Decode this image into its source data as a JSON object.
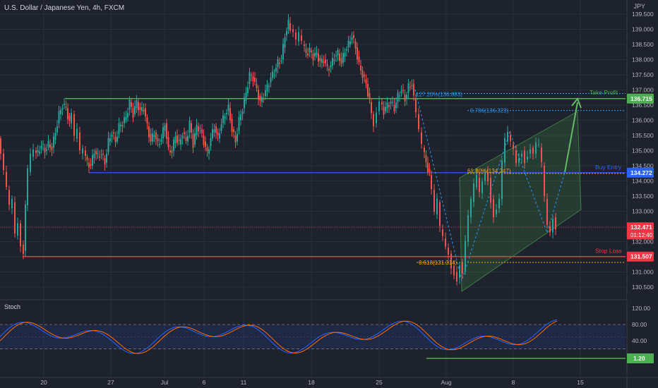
{
  "header": {
    "title": "U.S. Dollar / Japanese Yen, 4h, FXCM",
    "unit": "JPY",
    "stoch_label": "Stoch"
  },
  "colors": {
    "background": "#1e222d",
    "bull": "#26a69a",
    "bear": "#ef5350",
    "green_line": "#4caf50",
    "blue_line": "#2962ff",
    "red_line": "#f23645",
    "fib_blue": "#2196f3",
    "fib_orange": "#f7a600",
    "stoch_k": "#2962ff",
    "stoch_d": "#ff6d00",
    "channel": "#4caf50"
  },
  "chart_data": {
    "type": "candlestick",
    "y_axis": {
      "ticks": [
        130.5,
        131.0,
        131.5,
        132.0,
        132.5,
        133.0,
        133.5,
        134.0,
        134.5,
        135.0,
        135.5,
        136.0,
        136.5,
        137.0,
        137.5,
        138.0,
        138.5,
        139.0,
        139.5
      ],
      "tick_labels": [
        "130.500",
        "131.000",
        "131.500",
        "132.000",
        "132.500",
        "133.000",
        "133.500",
        "134.000",
        "134.500",
        "135.000",
        "135.500",
        "136.000",
        "136.500",
        "137.000",
        "137.500",
        "138.000",
        "138.500",
        "139.000",
        "139.500"
      ]
    },
    "x_axis": {
      "labels": [
        "20",
        "27",
        "Jul",
        "6",
        "11",
        "18",
        "25",
        "Aug",
        "8",
        "15"
      ]
    },
    "price_path": [
      [
        0,
        135.4
      ],
      [
        4,
        134.9
      ],
      [
        8,
        134.3
      ],
      [
        12,
        133.7
      ],
      [
        16,
        133.1
      ],
      [
        20,
        133.3
      ],
      [
        24,
        132.2
      ],
      [
        28,
        132.6
      ],
      [
        32,
        131.9
      ],
      [
        35,
        131.7
      ],
      [
        38,
        133.2
      ],
      [
        42,
        134.3
      ],
      [
        46,
        134.8
      ],
      [
        50,
        135.0
      ],
      [
        55,
        134.9
      ],
      [
        60,
        135.2
      ],
      [
        65,
        135.0
      ],
      [
        70,
        135.2
      ],
      [
        75,
        135.1
      ],
      [
        80,
        135.6
      ],
      [
        85,
        136.2
      ],
      [
        90,
        136.5
      ],
      [
        95,
        136.4
      ],
      [
        100,
        135.9
      ],
      [
        104,
        136.2
      ],
      [
        108,
        135.4
      ],
      [
        112,
        135.6
      ],
      [
        116,
        134.9
      ],
      [
        120,
        135.0
      ],
      [
        125,
        134.6
      ],
      [
        130,
        134.5
      ],
      [
        135,
        135.0
      ],
      [
        140,
        134.8
      ],
      [
        145,
        134.9
      ],
      [
        150,
        134.6
      ],
      [
        155,
        135.3
      ],
      [
        160,
        135.6
      ],
      [
        165,
        135.3
      ],
      [
        170,
        135.8
      ],
      [
        175,
        135.9
      ],
      [
        180,
        136.1
      ],
      [
        185,
        136.6
      ],
      [
        190,
        136.2
      ],
      [
        195,
        136.6
      ],
      [
        200,
        136.3
      ],
      [
        205,
        136.4
      ],
      [
        210,
        135.8
      ],
      [
        215,
        135.3
      ],
      [
        220,
        135.6
      ],
      [
        225,
        135.2
      ],
      [
        230,
        135.4
      ],
      [
        235,
        135.9
      ],
      [
        240,
        135.0
      ],
      [
        245,
        135.0
      ],
      [
        250,
        135.5
      ],
      [
        255,
        135.2
      ],
      [
        260,
        135.6
      ],
      [
        265,
        135.3
      ],
      [
        270,
        135.9
      ],
      [
        275,
        135.2
      ],
      [
        280,
        135.8
      ],
      [
        285,
        135.7
      ],
      [
        290,
        135.3
      ],
      [
        295,
        134.9
      ],
      [
        300,
        135.4
      ],
      [
        305,
        135.8
      ],
      [
        310,
        135.4
      ],
      [
        315,
        135.9
      ],
      [
        320,
        136.2
      ],
      [
        325,
        136.4
      ],
      [
        330,
        135.7
      ],
      [
        335,
        135.3
      ],
      [
        340,
        136.0
      ],
      [
        345,
        136.4
      ],
      [
        350,
        136.9
      ],
      [
        355,
        137.5
      ],
      [
        360,
        137.4
      ],
      [
        365,
        137.0
      ],
      [
        370,
        136.6
      ],
      [
        375,
        136.8
      ],
      [
        380,
        137.1
      ],
      [
        385,
        137.4
      ],
      [
        390,
        137.6
      ],
      [
        395,
        137.9
      ],
      [
        400,
        138.0
      ],
      [
        405,
        138.8
      ],
      [
        410,
        139.2
      ],
      [
        414,
        139.0
      ],
      [
        418,
        138.9
      ],
      [
        422,
        138.6
      ],
      [
        426,
        138.8
      ],
      [
        430,
        138.5
      ],
      [
        435,
        138.2
      ],
      [
        440,
        138.3
      ],
      [
        445,
        138.1
      ],
      [
        450,
        138.2
      ],
      [
        455,
        137.9
      ],
      [
        460,
        138.0
      ],
      [
        465,
        137.7
      ],
      [
        470,
        137.8
      ],
      [
        475,
        138.1
      ],
      [
        480,
        138.2
      ],
      [
        485,
        137.9
      ],
      [
        490,
        138.3
      ],
      [
        495,
        138.5
      ],
      [
        500,
        138.8
      ],
      [
        505,
        138.4
      ],
      [
        510,
        137.8
      ],
      [
        515,
        137.5
      ],
      [
        520,
        137.2
      ],
      [
        525,
        136.6
      ],
      [
        528,
        136.2
      ],
      [
        532,
        135.9
      ],
      [
        536,
        136.3
      ],
      [
        540,
        136.6
      ],
      [
        545,
        136.3
      ],
      [
        550,
        136.5
      ],
      [
        555,
        136.6
      ],
      [
        560,
        136.4
      ],
      [
        565,
        136.8
      ],
      [
        570,
        137.0
      ],
      [
        575,
        136.7
      ],
      [
        580,
        137.1
      ],
      [
        585,
        137.2
      ],
      [
        588,
        136.7
      ],
      [
        592,
        136.2
      ],
      [
        596,
        135.6
      ],
      [
        600,
        135.1
      ],
      [
        605,
        134.6
      ],
      [
        610,
        134.2
      ],
      [
        614,
        133.7
      ],
      [
        618,
        132.9
      ],
      [
        622,
        133.3
      ],
      [
        626,
        132.4
      ],
      [
        630,
        132.1
      ],
      [
        634,
        131.8
      ],
      [
        638,
        131.6
      ],
      [
        642,
        131.2
      ],
      [
        646,
        131.0
      ],
      [
        650,
        130.8
      ],
      [
        654,
        131.3
      ],
      [
        658,
        131.0
      ],
      [
        662,
        132.0
      ],
      [
        666,
        132.8
      ],
      [
        670,
        133.3
      ],
      [
        674,
        133.8
      ],
      [
        678,
        134.1
      ],
      [
        682,
        133.6
      ],
      [
        686,
        134.0
      ],
      [
        690,
        134.3
      ],
      [
        694,
        134.1
      ],
      [
        698,
        133.4
      ],
      [
        702,
        132.9
      ],
      [
        706,
        133.1
      ],
      [
        710,
        133.4
      ],
      [
        714,
        134.6
      ],
      [
        718,
        135.3
      ],
      [
        722,
        135.5
      ],
      [
        726,
        135.2
      ],
      [
        730,
        135.0
      ],
      [
        734,
        134.6
      ],
      [
        738,
        134.8
      ],
      [
        742,
        135.0
      ],
      [
        746,
        134.7
      ],
      [
        750,
        134.9
      ],
      [
        754,
        135.1
      ],
      [
        758,
        134.9
      ],
      [
        762,
        135.2
      ],
      [
        766,
        135.1
      ],
      [
        770,
        134.5
      ],
      [
        774,
        133.4
      ],
      [
        778,
        132.5
      ],
      [
        782,
        132.3
      ],
      [
        786,
        132.8
      ],
      [
        790,
        132.5
      ]
    ],
    "levels": [
      {
        "name": "take_profit",
        "label": "Take Profit",
        "value": 136.715,
        "value_label": "136.715"
      },
      {
        "name": "buy_entry",
        "label": "Buy Entry",
        "value": 134.272,
        "value_label": "134.272"
      },
      {
        "name": "stop_loss",
        "label": "Stop Loss",
        "value": 131.507,
        "value_label": "131.507"
      },
      {
        "name": "current",
        "value": 132.471,
        "value_label": "132.471",
        "countdown": "01:12:40"
      }
    ],
    "fib_labels": [
      {
        "text": "127.20%(136.883)",
        "value": 136.883
      },
      {
        "text": "0.786(136.323)",
        "value": 136.323
      },
      {
        "text": "61.80%(134.247)",
        "value": 134.247
      },
      {
        "text": "0.618(131.314)",
        "value": 131.314
      }
    ],
    "stoch": {
      "ticks": [
        120.0,
        80.0,
        40.0
      ],
      "tick_labels": [
        "120.00",
        "80.00",
        "40.00"
      ],
      "band": [
        80,
        20
      ],
      "current_label": "1.20",
      "current_value": 1.2
    }
  }
}
